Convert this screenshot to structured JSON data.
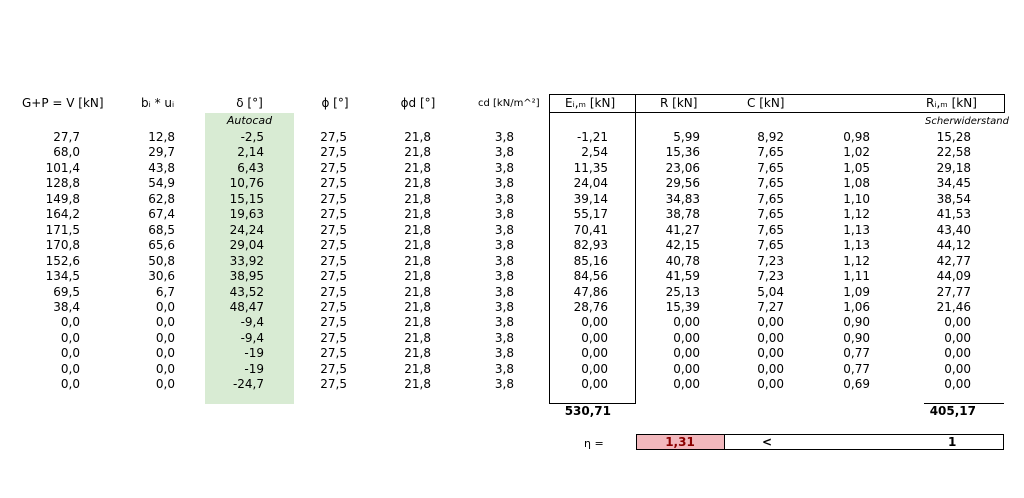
{
  "headers": {
    "v": "G+P = V [kN]",
    "bu": "bᵢ * uᵢ",
    "delta": "δ [°]",
    "phi": "ϕ [°]",
    "phid": "ϕd [°]",
    "cd": "cd [kN/m^²]",
    "e": "Eᵢ,ₘ [kN]",
    "r": "R [kN]",
    "c": "C [kN]",
    "ri": "Rᵢ,ₘ [kN]",
    "autocad": "Autocad",
    "scherwiderstand": "Scherwiderstand"
  },
  "columns": {
    "v": [
      "27,7",
      "68,0",
      "101,4",
      "128,8",
      "149,8",
      "164,2",
      "171,5",
      "170,8",
      "152,6",
      "134,5",
      "69,5",
      "38,4",
      "0,0",
      "0,0",
      "0,0",
      "0,0",
      "0,0"
    ],
    "bu": [
      "12,8",
      "29,7",
      "43,8",
      "54,9",
      "62,8",
      "67,4",
      "68,5",
      "65,6",
      "50,8",
      "30,6",
      "6,7",
      "0,0",
      "0,0",
      "0,0",
      "0,0",
      "0,0",
      "0,0"
    ],
    "delta": [
      "-2,5",
      "2,14",
      "6,43",
      "10,76",
      "15,15",
      "19,63",
      "24,24",
      "29,04",
      "33,92",
      "38,95",
      "43,52",
      "48,47",
      "-9,4",
      "-9,4",
      "-19",
      "-19",
      "-24,7"
    ],
    "phi": [
      "27,5",
      "27,5",
      "27,5",
      "27,5",
      "27,5",
      "27,5",
      "27,5",
      "27,5",
      "27,5",
      "27,5",
      "27,5",
      "27,5",
      "27,5",
      "27,5",
      "27,5",
      "27,5",
      "27,5"
    ],
    "phid": [
      "21,8",
      "21,8",
      "21,8",
      "21,8",
      "21,8",
      "21,8",
      "21,8",
      "21,8",
      "21,8",
      "21,8",
      "21,8",
      "21,8",
      "21,8",
      "21,8",
      "21,8",
      "21,8",
      "21,8"
    ],
    "cd": [
      "3,8",
      "3,8",
      "3,8",
      "3,8",
      "3,8",
      "3,8",
      "3,8",
      "3,8",
      "3,8",
      "3,8",
      "3,8",
      "3,8",
      "3,8",
      "3,8",
      "3,8",
      "3,8",
      "3,8"
    ],
    "e": [
      "-1,21",
      "2,54",
      "11,35",
      "24,04",
      "39,14",
      "55,17",
      "70,41",
      "82,93",
      "85,16",
      "84,56",
      "47,86",
      "28,76",
      "0,00",
      "0,00",
      "0,00",
      "0,00",
      "0,00"
    ],
    "r": [
      "5,99",
      "15,36",
      "23,06",
      "29,56",
      "34,83",
      "38,78",
      "41,27",
      "42,15",
      "40,78",
      "41,59",
      "25,13",
      "15,39",
      "0,00",
      "0,00",
      "0,00",
      "0,00",
      "0,00"
    ],
    "c": [
      "8,92",
      "7,65",
      "7,65",
      "7,65",
      "7,65",
      "7,65",
      "7,65",
      "7,65",
      "7,23",
      "7,23",
      "5,04",
      "7,27",
      "0,00",
      "0,00",
      "0,00",
      "0,00",
      "0,00"
    ],
    "f": [
      "0,98",
      "1,02",
      "1,05",
      "1,08",
      "1,10",
      "1,12",
      "1,13",
      "1,13",
      "1,12",
      "1,11",
      "1,09",
      "1,06",
      "0,90",
      "0,90",
      "0,77",
      "0,77",
      "0,69"
    ],
    "ri": [
      "15,28",
      "22,58",
      "29,18",
      "34,45",
      "38,54",
      "41,53",
      "43,40",
      "44,12",
      "42,77",
      "44,09",
      "27,77",
      "21,46",
      "0,00",
      "0,00",
      "0,00",
      "0,00",
      "0,00"
    ]
  },
  "totals": {
    "e": "530,71",
    "ri": "405,17"
  },
  "eta": {
    "label": "η =",
    "value": "1,31",
    "op": "<",
    "limit": "1"
  },
  "colors": {
    "green": "#d8ebd3",
    "red": "#f2b8bd"
  }
}
